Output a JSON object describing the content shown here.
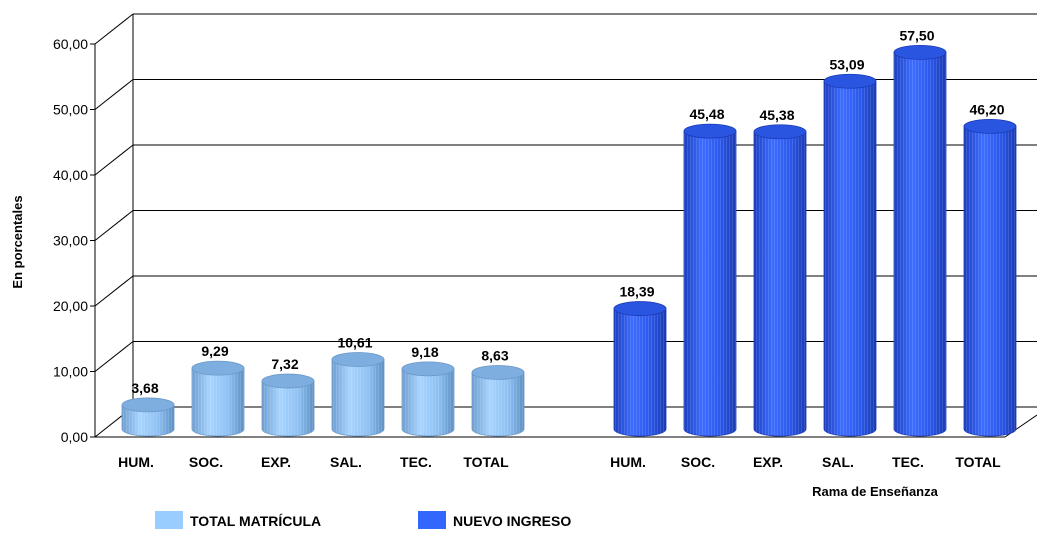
{
  "chart_data": {
    "type": "bar",
    "ylabel": "En porcentales",
    "xlabel": "Rama de Enseñanza",
    "ylim": [
      0,
      60
    ],
    "yticks": [
      "0,00",
      "10,00",
      "20,00",
      "30,00",
      "40,00",
      "50,00",
      "60,00"
    ],
    "grid": true,
    "legend_position": "bottom",
    "groups": [
      {
        "series": "TOTAL MATRÍCULA",
        "color": "#99ccff",
        "categories": [
          "HUM.",
          "SOC.",
          "EXP.",
          "SAL.",
          "TEC.",
          "TOTAL"
        ],
        "values": [
          3.68,
          9.29,
          7.32,
          10.61,
          9.18,
          8.63
        ],
        "labels": [
          "3,68",
          "9,29",
          "7,32",
          "10,61",
          "9,18",
          "8,63"
        ]
      },
      {
        "series": "NUEVO INGRESO",
        "color": "#3366ff",
        "categories": [
          "HUM.",
          "SOC.",
          "EXP.",
          "SAL.",
          "TEC.",
          "TOTAL"
        ],
        "values": [
          18.39,
          45.48,
          45.38,
          53.09,
          57.5,
          46.2
        ],
        "labels": [
          "18,39",
          "45,48",
          "45,38",
          "53,09",
          "57,50",
          "46,20"
        ]
      }
    ],
    "legend": [
      {
        "name": "TOTAL MATRÍCULA",
        "color": "#99ccff"
      },
      {
        "name": "NUEVO INGRESO",
        "color": "#3366ff"
      }
    ]
  }
}
